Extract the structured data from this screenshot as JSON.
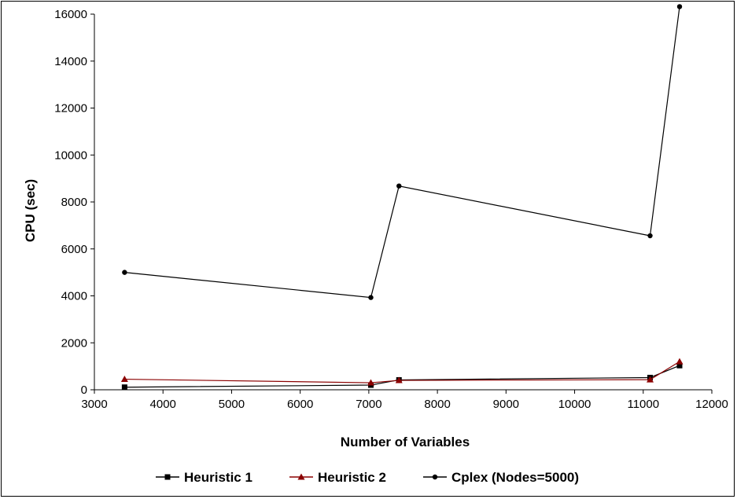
{
  "chart_data": {
    "type": "line",
    "title": "",
    "xlabel": "Number of Variables",
    "ylabel": "CPU (sec)",
    "xlim": [
      3000,
      12000
    ],
    "ylim": [
      0,
      16000
    ],
    "x_ticks": [
      "3000",
      "4000",
      "5000",
      "6000",
      "7000",
      "8000",
      "9000",
      "10000",
      "11000",
      "12000"
    ],
    "y_ticks": [
      "0",
      "2000",
      "4000",
      "6000",
      "8000",
      "10000",
      "12000",
      "14000",
      "16000"
    ],
    "grid": false,
    "legend_position": "bottom",
    "series": [
      {
        "name": "Heuristic 1",
        "color": "#000000",
        "marker": "square",
        "points": [
          [
            3440,
            110
          ],
          [
            7030,
            200
          ],
          [
            7440,
            420
          ],
          [
            11100,
            520
          ],
          [
            11530,
            1030
          ]
        ]
      },
      {
        "name": "Heuristic 2",
        "color": "#8b0000",
        "marker": "triangle",
        "points": [
          [
            3440,
            450
          ],
          [
            7030,
            300
          ],
          [
            7440,
            400
          ],
          [
            11100,
            430
          ],
          [
            11530,
            1200
          ]
        ]
      },
      {
        "name": "Cplex (Nodes=5000)",
        "color": "#000000",
        "marker": "circle",
        "points": [
          [
            3440,
            5000
          ],
          [
            7030,
            3930
          ],
          [
            7440,
            8680
          ],
          [
            11100,
            6560
          ],
          [
            11530,
            16320
          ]
        ]
      }
    ]
  }
}
